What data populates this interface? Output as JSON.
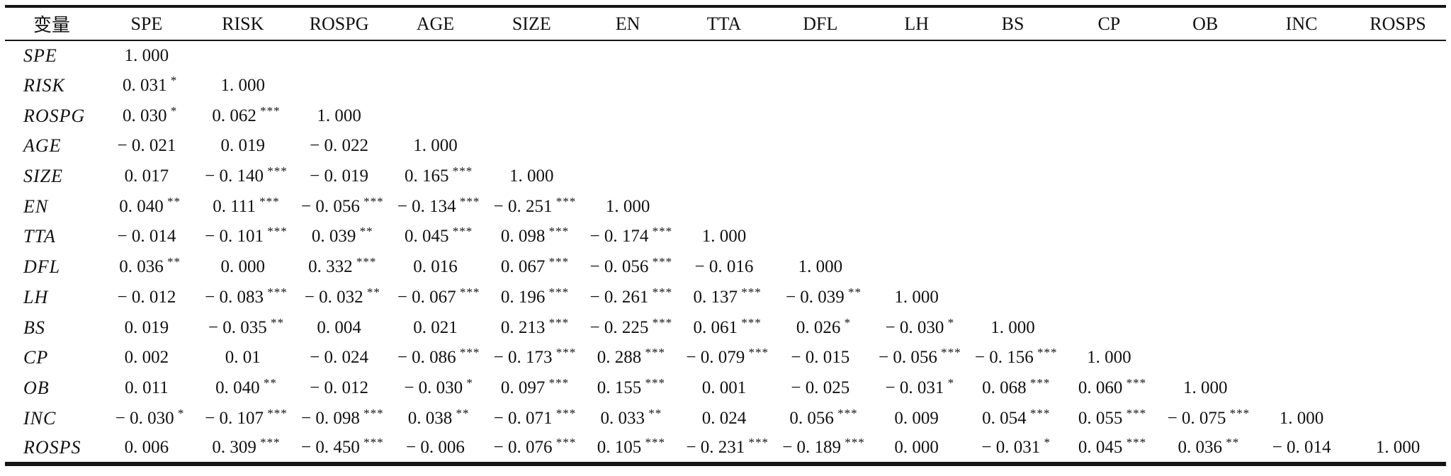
{
  "table": {
    "corner_header": "变量",
    "columns": [
      "SPE",
      "RISK",
      "ROSPG",
      "AGE",
      "SIZE",
      "EN",
      "TTA",
      "DFL",
      "LH",
      "BS",
      "CP",
      "OB",
      "INC",
      "ROSPS"
    ],
    "rows": [
      {
        "label": "SPE",
        "cells": [
          {
            "v": "1. 000",
            "stars": ""
          }
        ]
      },
      {
        "label": "RISK",
        "cells": [
          {
            "v": "0. 031",
            "stars": "*"
          },
          {
            "v": "1. 000",
            "stars": ""
          }
        ]
      },
      {
        "label": "ROSPG",
        "cells": [
          {
            "v": "0. 030",
            "stars": "*"
          },
          {
            "v": "0. 062",
            "stars": "***"
          },
          {
            "v": "1. 000",
            "stars": ""
          }
        ]
      },
      {
        "label": "AGE",
        "cells": [
          {
            "v": "− 0. 021",
            "stars": ""
          },
          {
            "v": "0. 019",
            "stars": ""
          },
          {
            "v": "− 0. 022",
            "stars": ""
          },
          {
            "v": "1. 000",
            "stars": ""
          }
        ]
      },
      {
        "label": "SIZE",
        "cells": [
          {
            "v": "0. 017",
            "stars": ""
          },
          {
            "v": "− 0. 140",
            "stars": "***"
          },
          {
            "v": "− 0. 019",
            "stars": ""
          },
          {
            "v": "0. 165",
            "stars": "***"
          },
          {
            "v": "1. 000",
            "stars": ""
          }
        ]
      },
      {
        "label": "EN",
        "cells": [
          {
            "v": "0. 040",
            "stars": "**"
          },
          {
            "v": "0. 111",
            "stars": "***"
          },
          {
            "v": "− 0. 056",
            "stars": "***"
          },
          {
            "v": "− 0. 134",
            "stars": "***"
          },
          {
            "v": "− 0. 251",
            "stars": "***"
          },
          {
            "v": "1. 000",
            "stars": ""
          }
        ]
      },
      {
        "label": "TTA",
        "cells": [
          {
            "v": "− 0. 014",
            "stars": ""
          },
          {
            "v": "− 0. 101",
            "stars": "***"
          },
          {
            "v": "0. 039",
            "stars": "**"
          },
          {
            "v": "0. 045",
            "stars": "***"
          },
          {
            "v": "0. 098",
            "stars": "***"
          },
          {
            "v": "− 0. 174",
            "stars": "***"
          },
          {
            "v": "1. 000",
            "stars": ""
          }
        ]
      },
      {
        "label": "DFL",
        "cells": [
          {
            "v": "0. 036",
            "stars": "**"
          },
          {
            "v": "0. 000",
            "stars": ""
          },
          {
            "v": "0. 332",
            "stars": "***"
          },
          {
            "v": "0. 016",
            "stars": ""
          },
          {
            "v": "0. 067",
            "stars": "***"
          },
          {
            "v": "− 0. 056",
            "stars": "***"
          },
          {
            "v": "− 0. 016",
            "stars": ""
          },
          {
            "v": "1. 000",
            "stars": ""
          }
        ]
      },
      {
        "label": "LH",
        "cells": [
          {
            "v": "− 0. 012",
            "stars": ""
          },
          {
            "v": "− 0. 083",
            "stars": "***"
          },
          {
            "v": "− 0. 032",
            "stars": "**"
          },
          {
            "v": "− 0. 067",
            "stars": "***"
          },
          {
            "v": "0. 196",
            "stars": "***"
          },
          {
            "v": "− 0. 261",
            "stars": "***"
          },
          {
            "v": "0. 137",
            "stars": "***"
          },
          {
            "v": "− 0. 039",
            "stars": "**"
          },
          {
            "v": "1. 000",
            "stars": ""
          }
        ]
      },
      {
        "label": "BS",
        "cells": [
          {
            "v": "0. 019",
            "stars": ""
          },
          {
            "v": "− 0. 035",
            "stars": "**"
          },
          {
            "v": "0. 004",
            "stars": ""
          },
          {
            "v": "0. 021",
            "stars": ""
          },
          {
            "v": "0. 213",
            "stars": "***"
          },
          {
            "v": "− 0. 225",
            "stars": "***"
          },
          {
            "v": "0. 061",
            "stars": "***"
          },
          {
            "v": "0. 026",
            "stars": "*"
          },
          {
            "v": "− 0. 030",
            "stars": "*"
          },
          {
            "v": "1. 000",
            "stars": ""
          }
        ]
      },
      {
        "label": "CP",
        "cells": [
          {
            "v": "0. 002",
            "stars": ""
          },
          {
            "v": "0. 01",
            "stars": ""
          },
          {
            "v": "− 0. 024",
            "stars": ""
          },
          {
            "v": "− 0. 086",
            "stars": "***"
          },
          {
            "v": "− 0. 173",
            "stars": "***"
          },
          {
            "v": "0. 288",
            "stars": "***"
          },
          {
            "v": "− 0. 079",
            "stars": "***"
          },
          {
            "v": "− 0. 015",
            "stars": ""
          },
          {
            "v": "− 0. 056",
            "stars": "***"
          },
          {
            "v": "− 0. 156",
            "stars": "***"
          },
          {
            "v": "1. 000",
            "stars": ""
          }
        ]
      },
      {
        "label": "OB",
        "cells": [
          {
            "v": "0. 011",
            "stars": ""
          },
          {
            "v": "0. 040",
            "stars": "**"
          },
          {
            "v": "− 0. 012",
            "stars": ""
          },
          {
            "v": "− 0. 030",
            "stars": "*"
          },
          {
            "v": "0. 097",
            "stars": "***"
          },
          {
            "v": "0. 155",
            "stars": "***"
          },
          {
            "v": "0. 001",
            "stars": ""
          },
          {
            "v": "− 0. 025",
            "stars": ""
          },
          {
            "v": "− 0. 031",
            "stars": "*"
          },
          {
            "v": "0. 068",
            "stars": "***"
          },
          {
            "v": "0. 060",
            "stars": "***"
          },
          {
            "v": "1. 000",
            "stars": ""
          }
        ]
      },
      {
        "label": "INC",
        "cells": [
          {
            "v": "− 0. 030",
            "stars": "*"
          },
          {
            "v": "− 0. 107",
            "stars": "***"
          },
          {
            "v": "− 0. 098",
            "stars": "***"
          },
          {
            "v": "0. 038",
            "stars": "**"
          },
          {
            "v": "− 0. 071",
            "stars": "***"
          },
          {
            "v": "0. 033",
            "stars": "**"
          },
          {
            "v": "0. 024",
            "stars": ""
          },
          {
            "v": "0. 056",
            "stars": "***"
          },
          {
            "v": "0. 009",
            "stars": ""
          },
          {
            "v": "0. 054",
            "stars": "***"
          },
          {
            "v": "0. 055",
            "stars": "***"
          },
          {
            "v": "− 0. 075",
            "stars": "***"
          },
          {
            "v": "1. 000",
            "stars": ""
          }
        ]
      },
      {
        "label": "ROSPS",
        "cells": [
          {
            "v": "0. 006",
            "stars": ""
          },
          {
            "v": "0. 309",
            "stars": "***"
          },
          {
            "v": "− 0. 450",
            "stars": "***"
          },
          {
            "v": "− 0. 006",
            "stars": ""
          },
          {
            "v": "− 0. 076",
            "stars": "***"
          },
          {
            "v": "0. 105",
            "stars": "***"
          },
          {
            "v": "− 0. 231",
            "stars": "***"
          },
          {
            "v": "− 0. 189",
            "stars": "***"
          },
          {
            "v": "0. 000",
            "stars": ""
          },
          {
            "v": "− 0. 031",
            "stars": "*"
          },
          {
            "v": "0. 045",
            "stars": "***"
          },
          {
            "v": "0. 036",
            "stars": "**"
          },
          {
            "v": "− 0. 014",
            "stars": ""
          },
          {
            "v": "1. 000",
            "stars": ""
          }
        ]
      }
    ]
  }
}
